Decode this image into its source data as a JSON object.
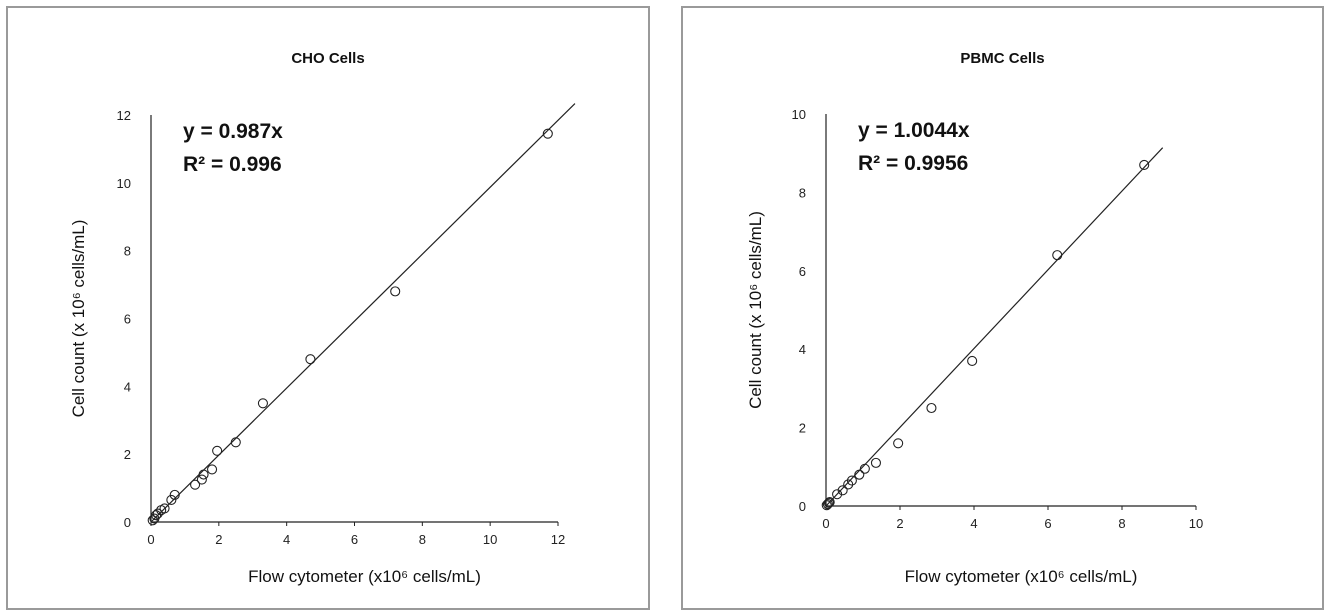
{
  "chart_data": [
    {
      "type": "scatter",
      "title": "CHO Cells",
      "xlabel": "Flow cytometer (x10⁶ cells/mL)",
      "ylabel": "Cell count (x 10⁶ cells/mL)",
      "xlim": [
        0,
        12
      ],
      "ylim": [
        0,
        12
      ],
      "xticks": [
        "0",
        "2",
        "4",
        "6",
        "8",
        "10",
        "12"
      ],
      "yticks": [
        "0",
        "2",
        "4",
        "6",
        "8",
        "10",
        "12"
      ],
      "equation": "y = 0.987x",
      "r_squared": "R² = 0.996",
      "trendline_slope": 0.987,
      "trendline_x_range": [
        0,
        12.5
      ],
      "x": [
        0.05,
        0.1,
        0.15,
        0.2,
        0.3,
        0.4,
        0.6,
        0.7,
        1.3,
        1.5,
        1.55,
        1.8,
        1.95,
        2.5,
        3.3,
        4.7,
        7.2,
        11.7
      ],
      "y": [
        0.05,
        0.1,
        0.2,
        0.25,
        0.35,
        0.4,
        0.65,
        0.8,
        1.1,
        1.25,
        1.4,
        1.55,
        2.1,
        2.35,
        3.5,
        4.8,
        6.8,
        11.45
      ]
    },
    {
      "type": "scatter",
      "title": "PBMC Cells",
      "xlabel": "Flow cytometer (x10⁶ cells/mL)",
      "ylabel": "Cell count (x 10⁶ cells/mL)",
      "xlim": [
        0,
        10
      ],
      "ylim": [
        0,
        10
      ],
      "xticks": [
        "0",
        "2",
        "4",
        "6",
        "8",
        "10"
      ],
      "yticks": [
        "0",
        "2",
        "4",
        "6",
        "8",
        "10"
      ],
      "equation": "y = 1.0044x",
      "r_squared": "R² = 0.9956",
      "trendline_slope": 1.0044,
      "trendline_x_range": [
        0,
        9.1
      ],
      "x": [
        0.02,
        0.05,
        0.08,
        0.1,
        0.3,
        0.45,
        0.6,
        0.7,
        0.9,
        1.05,
        1.35,
        1.95,
        2.85,
        3.95,
        6.25,
        8.6
      ],
      "y": [
        0.02,
        0.05,
        0.08,
        0.1,
        0.3,
        0.4,
        0.55,
        0.65,
        0.8,
        0.95,
        1.1,
        1.6,
        2.5,
        3.7,
        6.4,
        8.7
      ]
    }
  ]
}
